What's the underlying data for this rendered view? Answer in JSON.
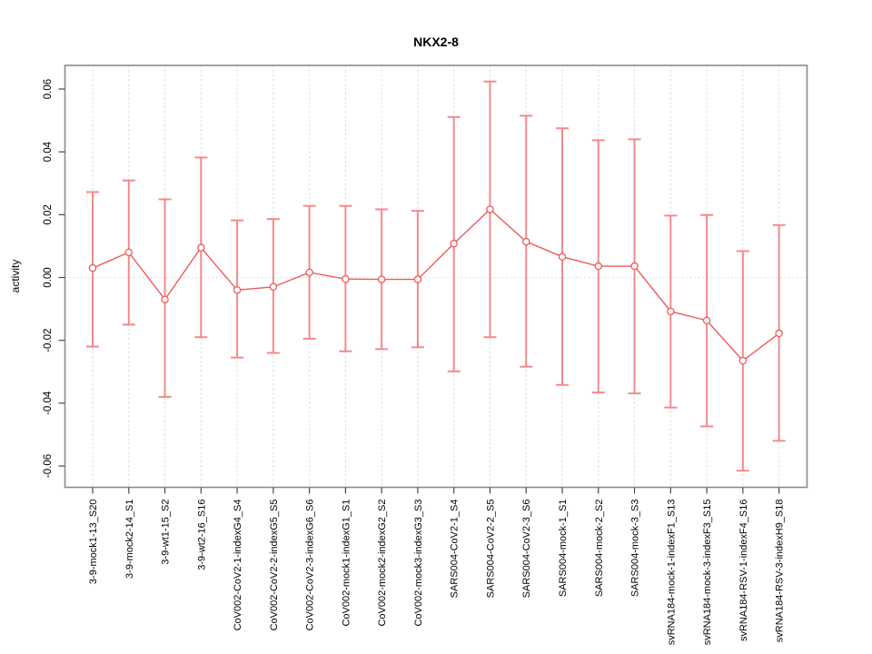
{
  "chart_data": {
    "type": "scatter",
    "subtype": "points-with-error-bars-connected-by-line",
    "title": "NKX2-8",
    "xlabel": "",
    "ylabel": "activity",
    "ylim": [
      -0.067,
      0.067
    ],
    "yticks": [
      0.06,
      0.04,
      0.02,
      0.0,
      -0.02,
      -0.04,
      -0.06
    ],
    "grid": {
      "vertical_dashed_per_category": true,
      "horizontal_dotted_zero_line": true
    },
    "legend": "none",
    "categories": [
      "3-9-mock1-13_S20",
      "3-9-mock2-14_S1",
      "3-9-wt1-15_S2",
      "3-9-wt2-16_S16",
      "CoV002-CoV2-1-indexG4_S4",
      "CoV002-CoV2-2-indexG5_S5",
      "CoV002-CoV2-3-indexG6_S6",
      "CoV002-mock1-indexG1_S1",
      "CoV002-mock2-indexG2_S2",
      "CoV002-mock3-indexG3_S3",
      "SARS004-CoV2-1_S4",
      "SARS004-CoV2-2_S5",
      "SARS004-CoV2-3_S6",
      "SARS004-mock-1_S1",
      "SARS004-mock-2_S2",
      "SARS004-mock-3_S3",
      "svRNA184-mock-1-indexF1_S13",
      "svRNA184-mock-3-indexF3_S15",
      "svRNA184-RSV-1-indexF4_S16",
      "svRNA184-RSV-3-indexH9_S18"
    ],
    "series": [
      {
        "name": "activity",
        "values": [
          0.003,
          0.008,
          -0.007,
          0.0095,
          -0.004,
          -0.003,
          0.0016,
          -0.0005,
          -0.0006,
          -0.0006,
          0.0108,
          0.0217,
          0.0114,
          0.0066,
          0.0036,
          0.0036,
          -0.0108,
          -0.0137,
          -0.0265,
          -0.0178
        ],
        "ci_low": [
          -0.022,
          -0.015,
          -0.038,
          -0.019,
          -0.0255,
          -0.024,
          -0.0195,
          -0.0235,
          -0.0228,
          -0.0222,
          -0.0299,
          -0.019,
          -0.0284,
          -0.0342,
          -0.0366,
          -0.0369,
          -0.0414,
          -0.0474,
          -0.0615,
          -0.052
        ],
        "ci_high": [
          0.0272,
          0.0309,
          0.0249,
          0.0382,
          0.0182,
          0.0186,
          0.0228,
          0.0228,
          0.0217,
          0.0212,
          0.0511,
          0.0624,
          0.0515,
          0.0475,
          0.0437,
          0.044,
          0.0197,
          0.0199,
          0.0084,
          0.0167
        ]
      }
    ],
    "colors": {
      "error_bar": "#f38a8a",
      "point_line": "#ee5a5a",
      "point_fill": "#ffffff",
      "gridline": "#dcdcdc",
      "zero_line": "#d4d4d4",
      "frame": "#8c8c8c",
      "tick": "#4a4a4a",
      "text": "#000000",
      "background": "#ffffff"
    }
  }
}
